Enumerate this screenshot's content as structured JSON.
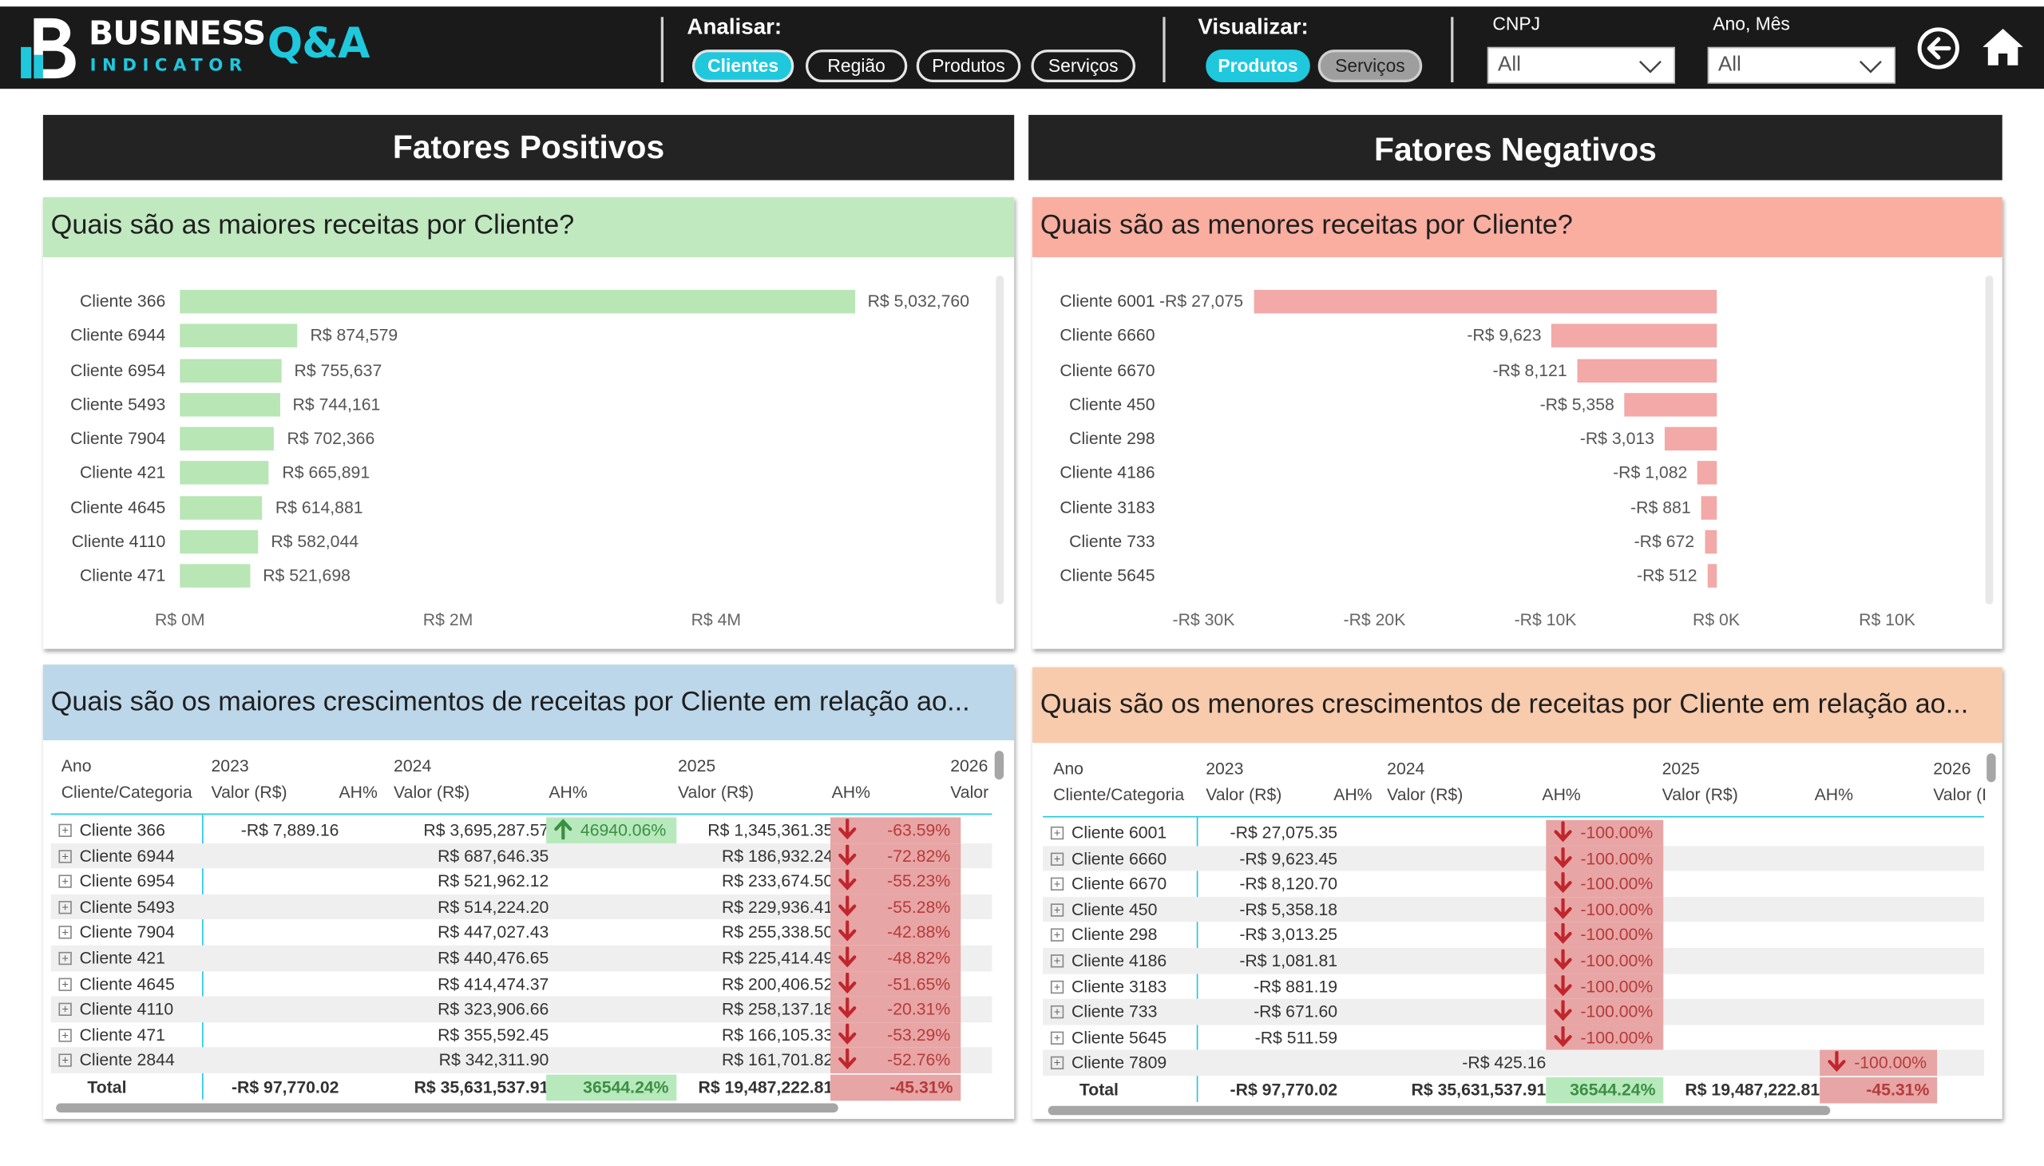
{
  "header": {
    "logo_line1": "BUSINESS",
    "logo_line2": "INDICATOR",
    "logo_qa": "Q&A",
    "analisar_label": "Analisar:",
    "analisar_options": [
      "Clientes",
      "Região",
      "Produtos",
      "Serviços"
    ],
    "analisar_selected": "Clientes",
    "visualizar_label": "Visualizar:",
    "visualizar_options": [
      "Produtos",
      "Serviços"
    ],
    "visualizar_selected": "Produtos",
    "cnpj_label": "CNPJ",
    "cnpj_value": "All",
    "anomes_label": "Ano, Mês",
    "anomes_value": "All",
    "back_icon": "back-arrow-icon",
    "home_icon": "home-icon",
    "accent_color": "#1fc8dd"
  },
  "sections": {
    "positive": "Fatores Positivos",
    "negative": "Fatores Negativos"
  },
  "top_receitas": {
    "title": "Quais são as maiores receitas por Cliente?",
    "header_color": "#c1e9c0",
    "bar_color": "#b8e6b5",
    "chart_data": {
      "type": "bar",
      "orientation": "horizontal",
      "categories": [
        "Cliente 366",
        "Cliente 6944",
        "Cliente 6954",
        "Cliente 5493",
        "Cliente 7904",
        "Cliente 421",
        "Cliente 4645",
        "Cliente 4110",
        "Cliente 471"
      ],
      "values": [
        5032760,
        874579,
        755637,
        744161,
        702366,
        665891,
        614881,
        582044,
        521698
      ],
      "value_labels": [
        "R$ 5,032,760",
        "R$ 874,579",
        "R$ 755,637",
        "R$ 744,161",
        "R$ 702,366",
        "R$ 665,891",
        "R$ 614,881",
        "R$ 582,044",
        "R$ 521,698"
      ],
      "xlim": [
        0,
        6000000
      ],
      "xticks": [
        0,
        2000000,
        4000000
      ],
      "xtick_labels": [
        "R$ 0M",
        "R$ 2M",
        "R$ 4M"
      ]
    }
  },
  "bottom_receitas": {
    "title": "Quais são as menores receitas por Cliente?",
    "header_color": "#f9aea0",
    "bar_color": "#f2a9a7",
    "chart_data": {
      "type": "bar",
      "orientation": "horizontal",
      "categories": [
        "Cliente 6001",
        "Cliente 6660",
        "Cliente 6670",
        "Cliente 450",
        "Cliente 298",
        "Cliente 4186",
        "Cliente 3183",
        "Cliente 733",
        "Cliente 5645"
      ],
      "values": [
        -27075,
        -9623,
        -8121,
        -5358,
        -3013,
        -1082,
        -881,
        -672,
        -512
      ],
      "value_labels": [
        "-R$ 27,075",
        "-R$ 9,623",
        "-R$ 8,121",
        "-R$ 5,358",
        "-R$ 3,013",
        "-R$ 1,082",
        "-R$ 881",
        "-R$ 672",
        "-R$ 512"
      ],
      "xlim": [
        -33000,
        13000
      ],
      "xticks": [
        -30000,
        -20000,
        -10000,
        0,
        10000
      ],
      "xtick_labels": [
        "-R$ 30K",
        "-R$ 20K",
        "-R$ 10K",
        "R$ 0K",
        "R$ 10K"
      ]
    }
  },
  "top_growth": {
    "title": "Quais são os maiores crescimentos de receitas por Cliente em relação ao...",
    "header_color": "#bdd7ea",
    "col_ano": "Ano",
    "col_cliente": "Cliente/Categoria",
    "years": [
      "2023",
      "2024",
      "2025",
      "2026"
    ],
    "col_valor": "Valor (R$)",
    "col_ah": "AH%",
    "col_valor_cut": "Valor",
    "rows": [
      {
        "name": "Cliente 366",
        "v2023": "-R$ 7,889.16",
        "v2024": "R$ 3,695,287.57",
        "ah2024": "46940.06%",
        "ah2024_dir": "up",
        "v2025": "R$ 1,345,361.35",
        "ah2025": "-63.59%"
      },
      {
        "name": "Cliente 6944",
        "v2023": "",
        "v2024": "R$ 687,646.35",
        "ah2024": "",
        "ah2024_dir": "",
        "v2025": "R$ 186,932.24",
        "ah2025": "-72.82%"
      },
      {
        "name": "Cliente 6954",
        "v2023": "",
        "v2024": "R$ 521,962.12",
        "ah2024": "",
        "ah2024_dir": "",
        "v2025": "R$ 233,674.50",
        "ah2025": "-55.23%"
      },
      {
        "name": "Cliente 5493",
        "v2023": "",
        "v2024": "R$ 514,224.20",
        "ah2024": "",
        "ah2024_dir": "",
        "v2025": "R$ 229,936.41",
        "ah2025": "-55.28%"
      },
      {
        "name": "Cliente 7904",
        "v2023": "",
        "v2024": "R$ 447,027.43",
        "ah2024": "",
        "ah2024_dir": "",
        "v2025": "R$ 255,338.50",
        "ah2025": "-42.88%"
      },
      {
        "name": "Cliente 421",
        "v2023": "",
        "v2024": "R$ 440,476.65",
        "ah2024": "",
        "ah2024_dir": "",
        "v2025": "R$ 225,414.49",
        "ah2025": "-48.82%"
      },
      {
        "name": "Cliente 4645",
        "v2023": "",
        "v2024": "R$ 414,474.37",
        "ah2024": "",
        "ah2024_dir": "",
        "v2025": "R$ 200,406.52",
        "ah2025": "-51.65%"
      },
      {
        "name": "Cliente 4110",
        "v2023": "",
        "v2024": "R$ 323,906.66",
        "ah2024": "",
        "ah2024_dir": "",
        "v2025": "R$ 258,137.18",
        "ah2025": "-20.31%"
      },
      {
        "name": "Cliente 471",
        "v2023": "",
        "v2024": "R$ 355,592.45",
        "ah2024": "",
        "ah2024_dir": "",
        "v2025": "R$ 166,105.33",
        "ah2025": "-53.29%"
      },
      {
        "name": "Cliente 2844",
        "v2023": "",
        "v2024": "R$ 342,311.90",
        "ah2024": "",
        "ah2024_dir": "",
        "v2025": "R$ 161,701.82",
        "ah2025": "-52.76%"
      }
    ],
    "total": {
      "name": "Total",
      "v2023": "-R$ 97,770.02",
      "v2024": "R$ 35,631,537.91",
      "ah2024": "36544.24%",
      "v2025": "R$ 19,487,222.81",
      "ah2025": "-45.31%"
    }
  },
  "bottom_growth": {
    "title": "Quais são os menores crescimentos de receitas por Cliente em relação ao...",
    "header_color": "#f8cbad",
    "col_ano": "Ano",
    "col_cliente": "Cliente/Categoria",
    "years": [
      "2023",
      "2024",
      "2025",
      "2026"
    ],
    "col_valor": "Valor (R$)",
    "col_ah": "AH%",
    "col_valor_cut": "Valor (I",
    "rows": [
      {
        "name": "Cliente 6001",
        "v2023": "-R$ 27,075.35",
        "v2024": "",
        "ah2024": "-100.00%",
        "v2025": "",
        "ah2025": ""
      },
      {
        "name": "Cliente 6660",
        "v2023": "-R$ 9,623.45",
        "v2024": "",
        "ah2024": "-100.00%",
        "v2025": "",
        "ah2025": ""
      },
      {
        "name": "Cliente 6670",
        "v2023": "-R$ 8,120.70",
        "v2024": "",
        "ah2024": "-100.00%",
        "v2025": "",
        "ah2025": ""
      },
      {
        "name": "Cliente 450",
        "v2023": "-R$ 5,358.18",
        "v2024": "",
        "ah2024": "-100.00%",
        "v2025": "",
        "ah2025": ""
      },
      {
        "name": "Cliente 298",
        "v2023": "-R$ 3,013.25",
        "v2024": "",
        "ah2024": "-100.00%",
        "v2025": "",
        "ah2025": ""
      },
      {
        "name": "Cliente 4186",
        "v2023": "-R$ 1,081.81",
        "v2024": "",
        "ah2024": "-100.00%",
        "v2025": "",
        "ah2025": ""
      },
      {
        "name": "Cliente 3183",
        "v2023": "-R$ 881.19",
        "v2024": "",
        "ah2024": "-100.00%",
        "v2025": "",
        "ah2025": ""
      },
      {
        "name": "Cliente 733",
        "v2023": "-R$ 671.60",
        "v2024": "",
        "ah2024": "-100.00%",
        "v2025": "",
        "ah2025": ""
      },
      {
        "name": "Cliente 5645",
        "v2023": "-R$ 511.59",
        "v2024": "",
        "ah2024": "-100.00%",
        "v2025": "",
        "ah2025": ""
      },
      {
        "name": "Cliente 7809",
        "v2023": "",
        "v2024": "-R$ 425.16",
        "ah2024": "",
        "v2025": "",
        "ah2025": "-100.00%"
      }
    ],
    "total": {
      "name": "Total",
      "v2023": "-R$ 97,770.02",
      "v2024": "R$ 35,631,537.91",
      "ah2024": "36544.24%",
      "v2025": "R$ 19,487,222.81",
      "ah2025": "-45.31%"
    }
  }
}
